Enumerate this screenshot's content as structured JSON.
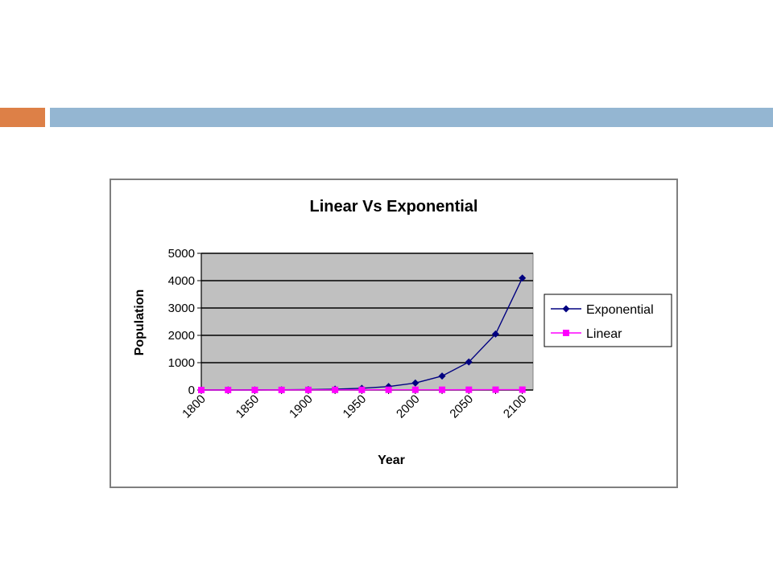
{
  "colors": {
    "accent_orange": "#dd8047",
    "accent_blue": "#94b6d2",
    "plot_background": "#c0c0c0",
    "exponential_series": "#000080",
    "linear_series": "#ff00ff"
  },
  "chart_data": {
    "type": "line",
    "title": "Linear Vs Exponential",
    "xlabel": "Year",
    "ylabel": "Population",
    "x_tick_labels": [
      "1800",
      "1850",
      "1900",
      "1950",
      "2000",
      "2050",
      "2100"
    ],
    "y_tick_labels": [
      "0",
      "1000",
      "2000",
      "3000",
      "4000",
      "5000"
    ],
    "ylim": [
      0,
      5000
    ],
    "x": [
      1800,
      1825,
      1850,
      1875,
      1900,
      1925,
      1950,
      1975,
      2000,
      2025,
      2050,
      2075,
      2100
    ],
    "grid": true,
    "legend_position": "right",
    "series": [
      {
        "name": "Exponential",
        "marker": "diamond",
        "values": [
          1,
          2,
          4,
          8,
          16,
          32,
          64,
          128,
          256,
          512,
          1024,
          2048,
          4096
        ]
      },
      {
        "name": "Linear",
        "marker": "square",
        "values": [
          1,
          2,
          3,
          4,
          5,
          6,
          7,
          8,
          9,
          10,
          11,
          12,
          13
        ]
      }
    ]
  }
}
